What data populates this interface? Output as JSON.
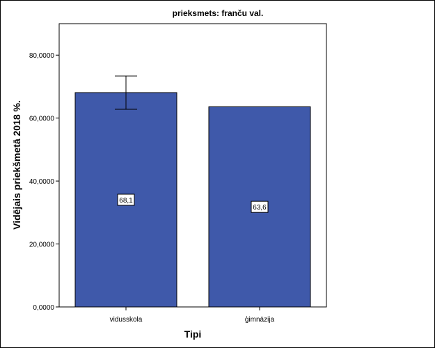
{
  "chart_data": {
    "type": "bar",
    "title": "prieksmets: franču val.",
    "xlabel": "Tipi",
    "ylabel": "Vidējais priekšmetā 2018 %.",
    "categories": [
      "vidusskola",
      "ģimnāzija"
    ],
    "values": [
      68.1,
      63.6
    ],
    "value_labels": [
      "68,1",
      "63,6"
    ],
    "error_bars": [
      {
        "low": 62.8,
        "high": 73.4
      },
      null
    ],
    "ylim": [
      0,
      90
    ],
    "yticks": [
      0,
      20,
      40,
      60,
      80
    ],
    "ytick_labels": [
      "0,0000",
      "20,0000",
      "40,0000",
      "60,0000",
      "80,0000"
    ],
    "grid": false,
    "legend": "none",
    "colors": {
      "bar_fill": "#3f59aa",
      "bar_stroke": "#000000",
      "plot_background": "#ffffff",
      "label_box_fill": "#ffffff"
    }
  }
}
